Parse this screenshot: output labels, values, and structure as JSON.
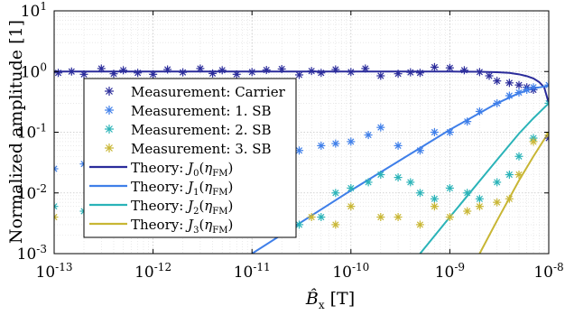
{
  "chart_data": {
    "type": "scatter",
    "x_scale": "log",
    "y_scale": "log",
    "xlim": [
      1e-13,
      1e-08
    ],
    "ylim": [
      0.001,
      10
    ],
    "x_ticks": [
      {
        "value": 1e-13,
        "base": "10",
        "exp": "-13"
      },
      {
        "value": 1e-12,
        "base": "10",
        "exp": "-12"
      },
      {
        "value": 1e-11,
        "base": "10",
        "exp": "-11"
      },
      {
        "value": 1e-10,
        "base": "10",
        "exp": "-10"
      },
      {
        "value": 1e-09,
        "base": "10",
        "exp": "-9"
      },
      {
        "value": 1e-08,
        "base": "10",
        "exp": "-8"
      }
    ],
    "y_ticks": [
      {
        "value": 0.001,
        "base": "10",
        "exp": "-3"
      },
      {
        "value": 0.01,
        "base": "10",
        "exp": "-2"
      },
      {
        "value": 0.1,
        "base": "10",
        "exp": "-1"
      },
      {
        "value": 1,
        "base": "10",
        "exp": "0"
      },
      {
        "value": 10,
        "base": "10",
        "exp": "1"
      }
    ],
    "xlabel": {
      "main": "B̂",
      "sub": "x",
      "unit": "[T]"
    },
    "ylabel": "Normalized amplitude [1]",
    "grid": true,
    "legend_position": "center-left",
    "series": [
      {
        "name": "Measurement: Carrier",
        "kind": "markers",
        "color": "#2b2c9b",
        "x": [
          1.1e-13,
          1.5e-13,
          2e-13,
          3e-13,
          4e-13,
          5e-13,
          7e-13,
          1e-12,
          1.4e-12,
          2e-12,
          3e-12,
          4e-12,
          5e-12,
          7e-12,
          1e-11,
          1.4e-11,
          2e-11,
          3e-11,
          4e-11,
          5e-11,
          7e-11,
          1e-10,
          1.4e-10,
          2e-10,
          3e-10,
          4e-10,
          5e-10,
          7e-10,
          1e-09,
          1.4e-09,
          2e-09,
          2.5e-09,
          3e-09,
          4e-09,
          5e-09,
          6e-09,
          7e-09,
          1e-08
        ],
        "y": [
          0.95,
          1.0,
          0.9,
          1.12,
          0.92,
          1.05,
          0.95,
          0.9,
          1.08,
          0.97,
          1.12,
          0.93,
          1.05,
          0.9,
          0.98,
          1.06,
          1.1,
          0.88,
          1.02,
          0.95,
          1.08,
          0.98,
          1.12,
          0.85,
          0.92,
          0.97,
          0.95,
          1.18,
          1.15,
          1.05,
          0.98,
          0.85,
          0.7,
          0.65,
          0.6,
          0.55,
          0.5,
          0.08
        ]
      },
      {
        "name": "Measurement: 1. SB",
        "kind": "markers",
        "color": "#3f7fe9",
        "x": [
          1e-13,
          2e-13,
          3e-13,
          5e-13,
          7e-13,
          1e-12,
          1.5e-12,
          2e-12,
          3e-12,
          5e-12,
          7e-12,
          1e-11,
          1.5e-11,
          2e-11,
          3e-11,
          5e-11,
          7e-11,
          1e-10,
          1.5e-10,
          2e-10,
          3e-10,
          5e-10,
          7e-10,
          1e-09,
          1.5e-09,
          2e-09,
          3e-09,
          4e-09,
          5e-09,
          6e-09,
          7e-09,
          1e-08
        ],
        "y": [
          0.025,
          0.03,
          0.02,
          0.025,
          0.028,
          0.032,
          0.03,
          0.028,
          0.025,
          0.02,
          0.022,
          0.025,
          0.02,
          0.04,
          0.05,
          0.06,
          0.065,
          0.07,
          0.09,
          0.12,
          0.06,
          0.05,
          0.1,
          0.1,
          0.15,
          0.22,
          0.3,
          0.4,
          0.45,
          0.5,
          0.55,
          0.6
        ]
      },
      {
        "name": "Measurement: 2. SB",
        "kind": "markers",
        "color": "#2ab3b8",
        "x": [
          1e-13,
          2e-13,
          3e-13,
          5e-13,
          1e-12,
          2e-12,
          3e-12,
          5e-12,
          1e-11,
          2e-11,
          3e-11,
          5e-11,
          7e-11,
          1e-10,
          1.5e-10,
          2e-10,
          3e-10,
          4e-10,
          5e-10,
          7e-10,
          1e-09,
          1.5e-09,
          2e-09,
          3e-09,
          4e-09,
          5e-09,
          7e-09,
          1e-08
        ],
        "y": [
          0.006,
          0.005,
          0.006,
          0.005,
          0.006,
          0.005,
          0.007,
          0.006,
          0.005,
          0.004,
          0.003,
          0.004,
          0.01,
          0.012,
          0.015,
          0.02,
          0.018,
          0.015,
          0.01,
          0.008,
          0.012,
          0.01,
          0.008,
          0.015,
          0.02,
          0.04,
          0.08,
          0.3
        ]
      },
      {
        "name": "Measurement: 3. SB",
        "kind": "markers",
        "color": "#c8b634",
        "x": [
          1e-13,
          3e-13,
          1e-12,
          2e-12,
          4e-12,
          1e-11,
          2e-11,
          4e-11,
          7e-11,
          1e-10,
          2e-10,
          3e-10,
          5e-10,
          7e-10,
          1e-09,
          1.5e-09,
          2e-09,
          3e-09,
          4e-09,
          5e-09,
          7e-09,
          1e-08
        ],
        "y": [
          0.004,
          0.004,
          0.003,
          0.004,
          0.003,
          0.004,
          0.003,
          0.004,
          0.003,
          0.006,
          0.004,
          0.004,
          0.003,
          0.006,
          0.004,
          0.005,
          0.006,
          0.007,
          0.008,
          0.02,
          0.07,
          0.09
        ]
      },
      {
        "name": "Theory: J0(ηFM)",
        "legend_fn": "J",
        "legend_sub": "0",
        "kind": "line",
        "color": "#2b2c9b",
        "x": [
          1e-13,
          1e-12,
          1e-11,
          1e-10,
          1e-09,
          2e-09,
          3e-09,
          4e-09,
          5e-09,
          6e-09,
          7e-09,
          8e-09,
          9e-09,
          1e-08
        ],
        "y": [
          1.0,
          1.0,
          1.0,
          1.0,
          0.998,
          0.99,
          0.975,
          0.95,
          0.9,
          0.84,
          0.77,
          0.67,
          0.55,
          0.3
        ]
      },
      {
        "name": "Theory: J1(ηFM)",
        "legend_fn": "J",
        "legend_sub": "1",
        "kind": "line",
        "color": "#3f7fe9",
        "x": [
          1e-11,
          1e-10,
          1e-09,
          3e-09,
          5e-09,
          7e-09,
          1e-08
        ],
        "y": [
          0.001,
          0.011,
          0.11,
          0.3,
          0.44,
          0.53,
          0.58
        ]
      },
      {
        "name": "Theory: J2(ηFM)",
        "legend_fn": "J",
        "legend_sub": "2",
        "kind": "line",
        "color": "#2ab3b8",
        "x": [
          5e-10,
          1e-09,
          3e-09,
          5e-09,
          7e-09,
          1e-08
        ],
        "y": [
          0.001,
          0.004,
          0.035,
          0.095,
          0.17,
          0.3
        ]
      },
      {
        "name": "Theory: J3(ηFM)",
        "legend_fn": "J",
        "legend_sub": "3",
        "kind": "line",
        "color": "#c8b634",
        "x": [
          2e-09,
          3e-09,
          5e-09,
          7e-09,
          1e-08
        ],
        "y": [
          0.001,
          0.0035,
          0.016,
          0.04,
          0.1
        ]
      }
    ]
  }
}
